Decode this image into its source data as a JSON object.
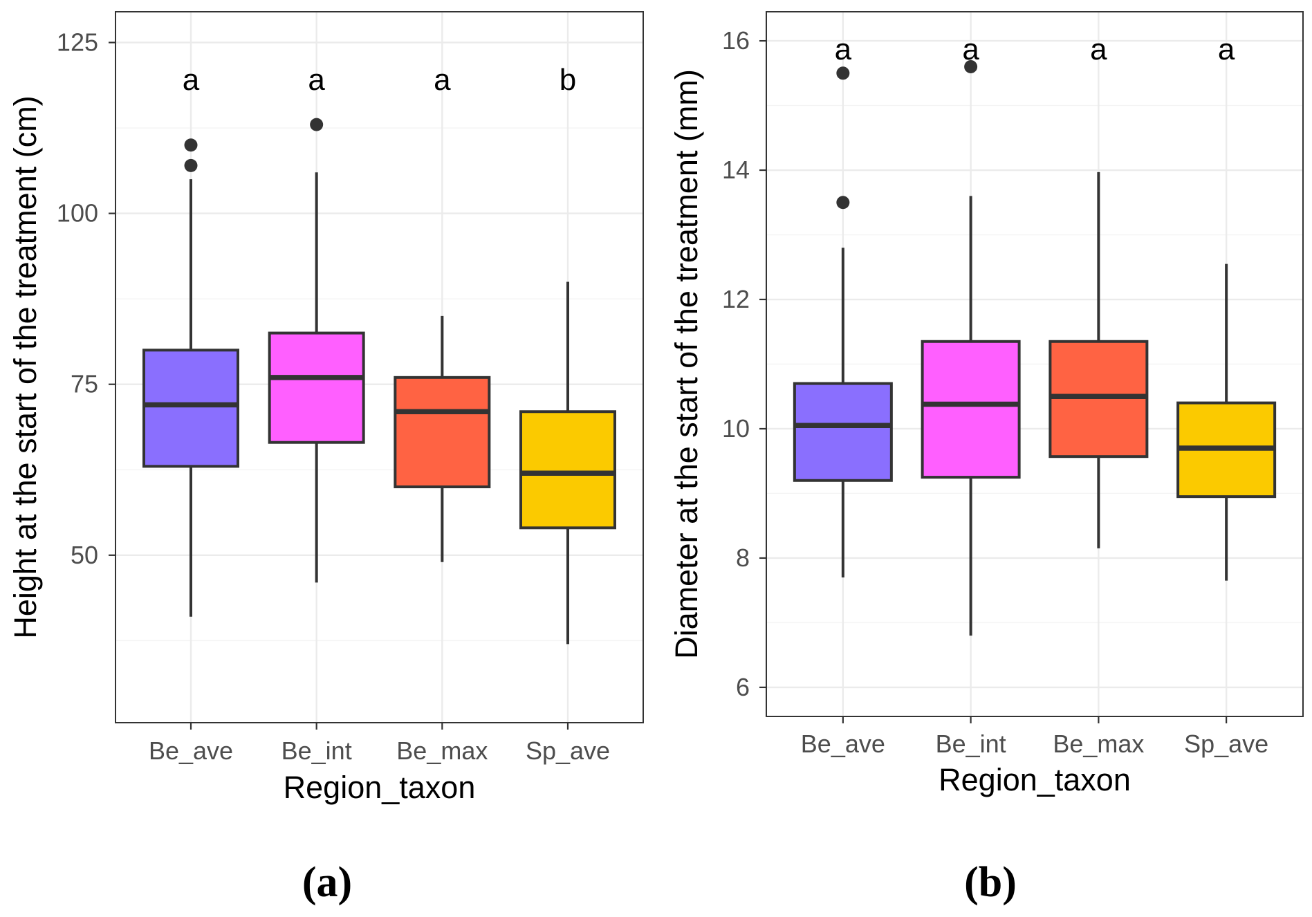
{
  "chart_data": [
    {
      "type": "box",
      "panel_label": "(a)",
      "xlabel": "Region_taxon",
      "ylabel": "Height at the start of the treatment (cm)",
      "ylim": [
        25.5,
        129.5
      ],
      "yticks": [
        50,
        75,
        100,
        125
      ],
      "grid": true,
      "categories": [
        "Be_ave",
        "Be_int",
        "Be_max",
        "Sp_ave"
      ],
      "colors": [
        "#8a6ffe",
        "#ff5fff",
        "#ff6343",
        "#fbca00"
      ],
      "boxes": [
        {
          "category": "Be_ave",
          "whisker_low": 41,
          "q1": 63,
          "median": 72,
          "q3": 80,
          "whisker_high": 105,
          "outliers": [
            107,
            110
          ],
          "letter": "a"
        },
        {
          "category": "Be_int",
          "whisker_low": 46,
          "q1": 66.5,
          "median": 76,
          "q3": 82.5,
          "whisker_high": 106,
          "outliers": [
            113
          ],
          "letter": "a"
        },
        {
          "category": "Be_max",
          "whisker_low": 49,
          "q1": 60,
          "median": 71,
          "q3": 76,
          "whisker_high": 85,
          "outliers": [],
          "letter": "a"
        },
        {
          "category": "Sp_ave",
          "whisker_low": 37,
          "q1": 54,
          "median": 62,
          "q3": 71,
          "whisker_high": 90,
          "outliers": [],
          "letter": "b"
        }
      ]
    },
    {
      "type": "box",
      "panel_label": "(b)",
      "xlabel": "Region_taxon",
      "ylabel": "Diameter at the start of the treatment (mm)",
      "ylim": [
        5.55,
        16.45
      ],
      "yticks": [
        6,
        8,
        10,
        12,
        14,
        16
      ],
      "grid": true,
      "categories": [
        "Be_ave",
        "Be_int",
        "Be_max",
        "Sp_ave"
      ],
      "colors": [
        "#8a6ffe",
        "#ff5fff",
        "#ff6343",
        "#fbca00"
      ],
      "boxes": [
        {
          "category": "Be_ave",
          "whisker_low": 7.7,
          "q1": 9.2,
          "median": 10.05,
          "q3": 10.7,
          "whisker_high": 12.8,
          "outliers": [
            13.5,
            15.5
          ],
          "letter": "a"
        },
        {
          "category": "Be_int",
          "whisker_low": 6.8,
          "q1": 9.25,
          "median": 10.38,
          "q3": 11.35,
          "whisker_high": 13.6,
          "outliers": [
            15.6
          ],
          "letter": "a"
        },
        {
          "category": "Be_max",
          "whisker_low": 8.15,
          "q1": 9.57,
          "median": 10.5,
          "q3": 11.35,
          "whisker_high": 13.97,
          "outliers": [],
          "letter": "a"
        },
        {
          "category": "Sp_ave",
          "whisker_low": 7.65,
          "q1": 8.95,
          "median": 9.7,
          "q3": 10.4,
          "whisker_high": 12.55,
          "outliers": [],
          "letter": "a"
        }
      ]
    }
  ]
}
